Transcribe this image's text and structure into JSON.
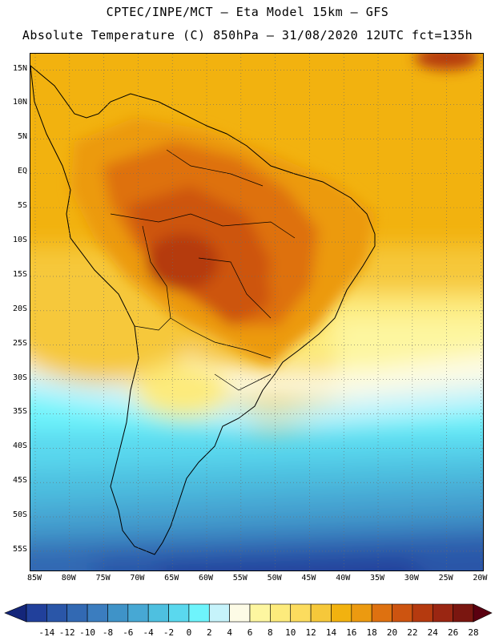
{
  "header": {
    "line1": "CPTEC/INPE/MCT –  Eta Model 15km – GFS",
    "line2": "Absolute Temperature (C) 850hPa – 31/08/2020 12UTC fct=135h"
  },
  "map": {
    "lat_labels": [
      "15N",
      "10N",
      "5N",
      "EQ",
      "5S",
      "10S",
      "15S",
      "20S",
      "25S",
      "30S",
      "35S",
      "40S",
      "45S",
      "50S",
      "55S"
    ],
    "lon_labels": [
      "85W",
      "80W",
      "75W",
      "70W",
      "65W",
      "60W",
      "55W",
      "50W",
      "45W",
      "40W",
      "35W",
      "30W",
      "25W",
      "20W"
    ],
    "bounds": {
      "lon_min": -85.7,
      "lon_max": -19.7,
      "lat_min": -57.8,
      "lat_max": 17.4
    }
  },
  "colorbar": {
    "labels": [
      "-14",
      "-12",
      "-10",
      "-8",
      "-6",
      "-4",
      "-2",
      "0",
      "2",
      "4",
      "6",
      "8",
      "10",
      "12",
      "14",
      "16",
      "18",
      "20",
      "22",
      "24",
      "26",
      "28"
    ],
    "under_color": "#14267a",
    "over_color": "#5a0010",
    "colors": [
      "#21409b",
      "#2a56a8",
      "#3269b3",
      "#3b7dbf",
      "#3f93c8",
      "#47a8d4",
      "#4ec0e0",
      "#5ad8ee",
      "#6ef4fc",
      "#c6f3fb",
      "#fdfbe6",
      "#fdf6a0",
      "#fdeb7c",
      "#fcdc5e",
      "#f6c83a",
      "#f2b20f",
      "#ec9a10",
      "#de7110",
      "#cd5410",
      "#b53a0f",
      "#9a2612",
      "#7a1610"
    ]
  }
}
